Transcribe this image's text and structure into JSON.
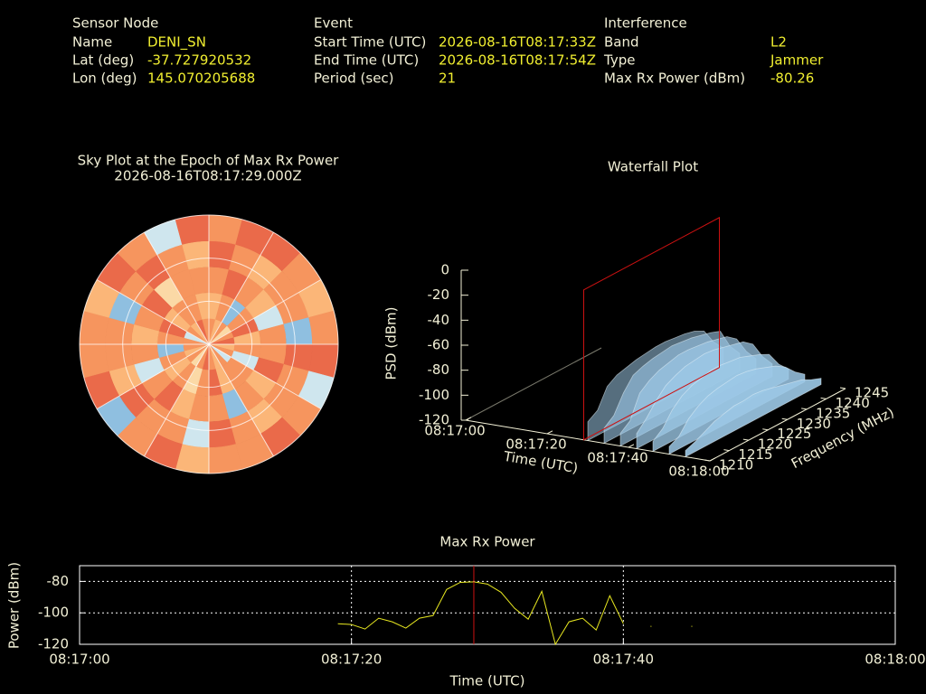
{
  "info": {
    "sensor": {
      "heading": "Sensor Node",
      "rows": [
        [
          "Name",
          "DENI_SN"
        ],
        [
          "Lat (deg)",
          "-37.727920532"
        ],
        [
          "Lon (deg)",
          "145.070205688"
        ]
      ]
    },
    "event": {
      "heading": "Event",
      "rows": [
        [
          "Start Time (UTC)",
          "2026-08-16T08:17:33Z"
        ],
        [
          "End Time (UTC)",
          "2026-08-16T08:17:54Z"
        ],
        [
          "Period (sec)",
          "21"
        ]
      ]
    },
    "interference": {
      "heading": "Interference",
      "rows": [
        [
          "Band",
          "L2"
        ],
        [
          "Type",
          "Jammer"
        ],
        [
          "Max Rx Power (dBm)",
          "-80.26"
        ]
      ]
    }
  },
  "chart_data": [
    {
      "type": "polar-heatmap",
      "title": "Sky Plot at the Epoch of Max Rx Power",
      "subtitle": "2026-08-16T08:17:29.000Z",
      "colormap": [
        "#2c4a9a",
        "#4f80c2",
        "#8fbfe0",
        "#cfe6ee",
        "#fbd9a6",
        "#fbb678",
        "#f6955e",
        "#ea6a4a"
      ],
      "values": [
        [
          6,
          5,
          6,
          4,
          6,
          7,
          5,
          6,
          3,
          6,
          5,
          6,
          7,
          6,
          4,
          6,
          5,
          6,
          6,
          3,
          6,
          5,
          7,
          6
        ],
        [
          5,
          6,
          2,
          6,
          7,
          5,
          6,
          3,
          6,
          6,
          5,
          7,
          6,
          4,
          6,
          5,
          6,
          2,
          6,
          7,
          5,
          6,
          6,
          5
        ],
        [
          6,
          7,
          6,
          5,
          3,
          6,
          6,
          7,
          5,
          6,
          2,
          6,
          6,
          5,
          7,
          6,
          3,
          6,
          5,
          6,
          7,
          4,
          6,
          6
        ],
        [
          7,
          6,
          5,
          6,
          6,
          2,
          7,
          6,
          6,
          5,
          6,
          7,
          3,
          6,
          6,
          7,
          5,
          6,
          6,
          2,
          6,
          7,
          6,
          5
        ],
        [
          6,
          7,
          7,
          6,
          5,
          6,
          7,
          3,
          6,
          7,
          6,
          6,
          5,
          7,
          6,
          2,
          7,
          6,
          6,
          5,
          7,
          6,
          3,
          7
        ]
      ]
    },
    {
      "type": "surface",
      "title": "Waterfall Plot",
      "zlabel": "PSD (dBm)",
      "xlabel": "Time (UTC)",
      "ylabel": "Frequency (MHz)",
      "color": "#9cc8e6",
      "marker_color": "#cc1111",
      "marker_x": 29,
      "xlim": [
        0,
        60
      ],
      "xticks": [
        {
          "value": 0,
          "label": "08:17:00"
        },
        {
          "value": 20,
          "label": "08:17:20"
        },
        {
          "value": 40,
          "label": "08:17:40"
        },
        {
          "value": 60,
          "label": "08:18:00"
        }
      ],
      "ylim": [
        1210,
        1245
      ],
      "yticks": [
        1210,
        1215,
        1220,
        1225,
        1230,
        1235,
        1240,
        1245
      ],
      "zlim": [
        -120,
        0
      ],
      "zticks": [
        -120,
        -100,
        -80,
        -60,
        -40,
        -20,
        0
      ],
      "frequencies": [
        1210,
        1212.5,
        1215,
        1217.5,
        1220,
        1222.5,
        1225,
        1227.5,
        1230,
        1232.5,
        1235,
        1237.5,
        1240,
        1242.5,
        1245
      ],
      "slices": [
        {
          "x": 30,
          "values": [
            -105,
            -100,
            -85,
            -80,
            -78,
            -76,
            -75,
            -74,
            -74,
            -75,
            -76,
            -78,
            -82,
            -95,
            -104
          ]
        },
        {
          "x": 34,
          "values": [
            -108,
            -102,
            -88,
            -78,
            -75,
            -73,
            -72,
            -71,
            -72,
            -73,
            -75,
            -77,
            -80,
            -96,
            -106
          ]
        },
        {
          "x": 38,
          "values": [
            -110,
            -104,
            -86,
            -80,
            -76,
            -74,
            -72,
            -72,
            -73,
            -74,
            -76,
            -78,
            -84,
            -98,
            -108
          ]
        },
        {
          "x": 42,
          "values": [
            -108,
            -100,
            -90,
            -82,
            -78,
            -75,
            -74,
            -73,
            -74,
            -76,
            -78,
            -80,
            -86,
            -100,
            -110
          ]
        },
        {
          "x": 46,
          "values": [
            -112,
            -106,
            -95,
            -88,
            -84,
            -82,
            -80,
            -80,
            -81,
            -82,
            -85,
            -88,
            -92,
            -104,
            -112
          ]
        },
        {
          "x": 50,
          "values": [
            -114,
            -110,
            -100,
            -94,
            -90,
            -88,
            -87,
            -86,
            -87,
            -89,
            -92,
            -95,
            -100,
            -108,
            -114
          ]
        },
        {
          "x": 54,
          "values": [
            -115,
            -112,
            -108,
            -104,
            -102,
            -100,
            -100,
            -99,
            -100,
            -102,
            -104,
            -106,
            -108,
            -112,
            -115
          ]
        }
      ]
    },
    {
      "type": "line",
      "title": "Max Rx Power",
      "xlabel": "Time (UTC)",
      "ylabel": "Power (dBm)",
      "color": "#e8e820",
      "marker_color": "#cc1111",
      "marker_x": 29,
      "grid": true,
      "xlim": [
        0,
        60
      ],
      "xticks": [
        {
          "value": 0,
          "label": "08:17:00"
        },
        {
          "value": 20,
          "label": "08:17:20"
        },
        {
          "value": 40,
          "label": "08:17:40"
        },
        {
          "value": 60,
          "label": "08:18:00"
        }
      ],
      "ylim": [
        -120,
        -70
      ],
      "yticks": [
        -120,
        -100,
        -80
      ],
      "x": [
        19,
        20,
        21,
        22,
        23,
        24,
        25,
        26,
        27,
        28,
        29,
        30,
        31,
        32,
        33,
        34,
        35,
        36,
        37,
        38,
        39,
        40,
        41,
        42,
        43,
        44,
        45
      ],
      "values": [
        -106.9,
        -107.4,
        -110.3,
        -103.4,
        -105.7,
        -109.7,
        -103.4,
        -101.7,
        -85.1,
        -80.6,
        -80.26,
        -81.7,
        -86.9,
        -97.1,
        -104,
        -86.3,
        -120,
        -105.7,
        -103.4,
        -110.9,
        -89.1,
        -106.9,
        null,
        -108.6,
        null,
        null,
        -108.6
      ]
    }
  ]
}
